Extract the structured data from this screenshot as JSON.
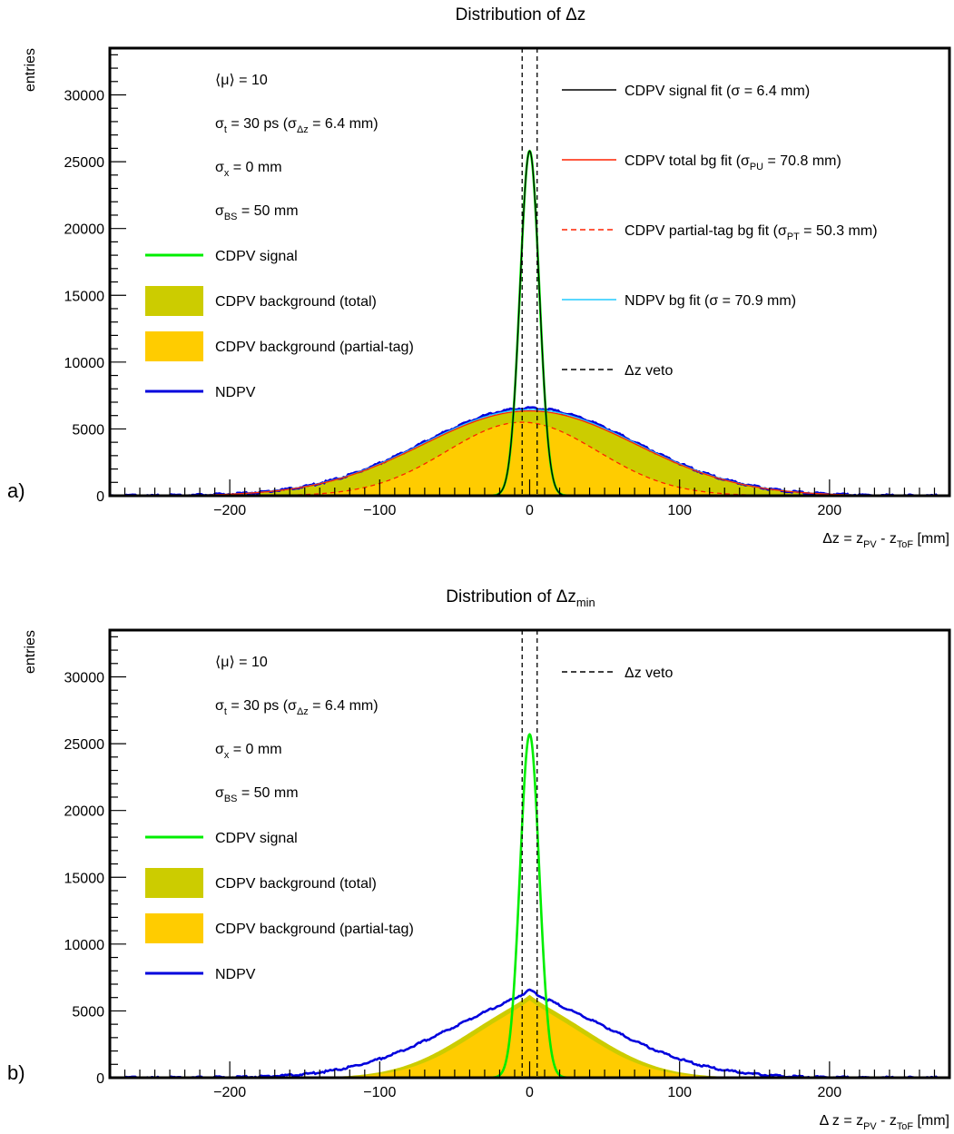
{
  "chart_data": [
    {
      "panel_label": "a)",
      "type": "line",
      "title": "Distribution of Δz",
      "xlabel": "Δz = z<sub>PV</sub> - z<sub>ToF</sub> [mm]",
      "ylabel": "entries",
      "xlim": [
        -280,
        280
      ],
      "ylim": [
        0,
        33500
      ],
      "xticks": [
        -200,
        -100,
        0,
        100,
        200
      ],
      "yticks": [
        0,
        5000,
        10000,
        15000,
        20000,
        25000,
        30000
      ],
      "veto": [
        -5,
        5
      ],
      "annotations": [
        "⟨μ⟩ = 10",
        "σ<sub>t</sub> = 30 ps (σ<sub>Δz</sub> = 6.4 mm)",
        "σ<sub>x</sub> = 0 mm",
        "σ<sub>BS</sub> = 50 mm"
      ],
      "legend_left": [
        {
          "label": "CDPV signal",
          "style": "line",
          "color": "#00ee00"
        },
        {
          "label": "CDPV background (total)",
          "style": "fill",
          "color": "#cccc00"
        },
        {
          "label": "CDPV background (partial-tag)",
          "style": "fill",
          "color": "#ffcc00"
        },
        {
          "label": "NDPV",
          "style": "line",
          "color": "#0000dd"
        }
      ],
      "legend_right": [
        {
          "label": "CDPV signal fit (σ = 6.4 mm)",
          "style": "line",
          "color": "#000000"
        },
        {
          "label": "CDPV total bg fit (σ<sub>PU</sub> = 70.8 mm)",
          "style": "line",
          "color": "#ff2200"
        },
        {
          "label": "CDPV partial-tag bg fit (σ<sub>PT</sub> = 50.3 mm)",
          "style": "dash",
          "color": "#ff2200"
        },
        {
          "label": "NDPV bg fit (σ = 70.9 mm)",
          "style": "line",
          "color": "#22ccff"
        },
        {
          "label": "Δz veto",
          "style": "dash",
          "color": "#000000"
        }
      ],
      "series": [
        {
          "name": "CDPV background (total)",
          "shape": "gauss",
          "amp": 6350,
          "mu": 0,
          "sigma": 70.8,
          "color": "#cccc00"
        },
        {
          "name": "CDPV background (partial-tag)",
          "shape": "gauss",
          "amp": 5500,
          "mu": -5,
          "sigma": 50.3,
          "color": "#ffcc00"
        },
        {
          "name": "NDPV",
          "shape": "gauss",
          "amp": 6550,
          "mu": 0,
          "sigma": 70.9,
          "color": "#0000dd"
        },
        {
          "name": "NDPV bg fit (σ = 70.9 mm)",
          "shape": "gauss",
          "amp": 6450,
          "mu": 0,
          "sigma": 70.9,
          "color": "#22ccff"
        },
        {
          "name": "CDPV total bg fit (σ<sub>PU</sub> = 70.8 mm)",
          "shape": "gauss",
          "amp": 6350,
          "mu": 0,
          "sigma": 70.8,
          "color": "#ff2200"
        },
        {
          "name": "CDPV partial-tag bg fit (σ<sub>PT</sub> = 50.3 mm)",
          "shape": "gauss",
          "amp": 5500,
          "mu": -5,
          "sigma": 50.3,
          "color": "#ff2200"
        },
        {
          "name": "CDPV signal",
          "shape": "gauss",
          "amp": 25800,
          "mu": 0,
          "sigma": 6.4,
          "color": "#00ee00"
        },
        {
          "name": "CDPV signal fit (σ = 6.4 mm)",
          "shape": "gauss",
          "amp": 25800,
          "mu": 0,
          "sigma": 6.4,
          "color": "#000000"
        }
      ]
    },
    {
      "panel_label": "b)",
      "type": "line",
      "title": "Distribution of Δz<sub>min</sub>",
      "xlabel": "Δ z = z<sub>PV</sub> - z<sub>ToF</sub> [mm]",
      "ylabel": "entries",
      "xlim": [
        -280,
        280
      ],
      "ylim": [
        0,
        33500
      ],
      "xticks": [
        -200,
        -100,
        0,
        100,
        200
      ],
      "yticks": [
        0,
        5000,
        10000,
        15000,
        20000,
        25000,
        30000
      ],
      "veto": [
        -5,
        5
      ],
      "annotations": [
        "⟨μ⟩ = 10",
        "σ<sub>t</sub> = 30 ps (σ<sub>Δz</sub> = 6.4 mm)",
        "σ<sub>x</sub> = 0 mm",
        "σ<sub>BS</sub> = 50 mm"
      ],
      "legend_left": [
        {
          "label": "CDPV signal",
          "style": "line",
          "color": "#00ee00"
        },
        {
          "label": "CDPV background (total)",
          "style": "fill",
          "color": "#cccc00"
        },
        {
          "label": "CDPV background (partial-tag)",
          "style": "fill",
          "color": "#ffcc00"
        },
        {
          "label": "NDPV",
          "style": "line",
          "color": "#0000dd"
        }
      ],
      "legend_right": [
        {
          "label": "Δz veto",
          "style": "dash",
          "color": "#000000"
        }
      ],
      "series": [
        {
          "name": "CDPV background (total)",
          "shape": "cusp",
          "amp": 6200,
          "mu": 0,
          "sigma": 45,
          "color": "#cccc00"
        },
        {
          "name": "CDPV background (partial-tag)",
          "shape": "cusp",
          "amp": 5800,
          "mu": 0,
          "sigma": 42,
          "color": "#ffcc00"
        },
        {
          "name": "NDPV",
          "shape": "cusp",
          "amp": 6550,
          "mu": 0,
          "sigma": 62,
          "color": "#0000dd"
        },
        {
          "name": "CDPV signal",
          "shape": "gauss",
          "amp": 25700,
          "mu": 0,
          "sigma": 6.4,
          "color": "#00ee00"
        }
      ]
    }
  ]
}
